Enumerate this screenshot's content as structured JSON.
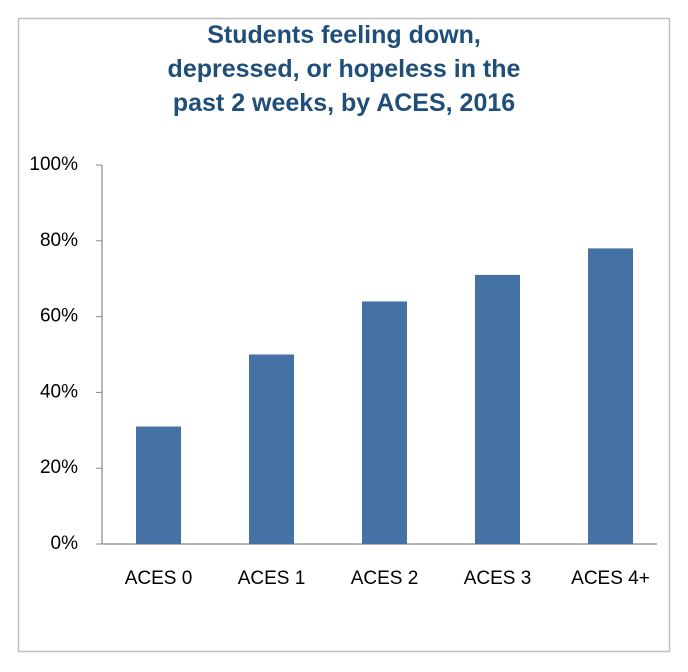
{
  "chart_data": {
    "type": "bar",
    "title": "Students feeling down,\ndepressed, or hopeless in the\npast 2 weeks, by ACES, 2016",
    "categories": [
      "ACES 0",
      "ACES 1",
      "ACES 2",
      "ACES 3",
      "ACES 4+"
    ],
    "values": [
      31,
      50,
      64,
      71,
      78
    ],
    "color": "#4472a4",
    "ylim": [
      0,
      100
    ],
    "yticks": [
      {
        "value": 0,
        "label": "0%"
      },
      {
        "value": 20,
        "label": "20%"
      },
      {
        "value": 40,
        "label": "40%"
      },
      {
        "value": 60,
        "label": "60%"
      },
      {
        "value": 80,
        "label": "80%"
      },
      {
        "value": 100,
        "label": "100%"
      }
    ],
    "grid": false
  }
}
